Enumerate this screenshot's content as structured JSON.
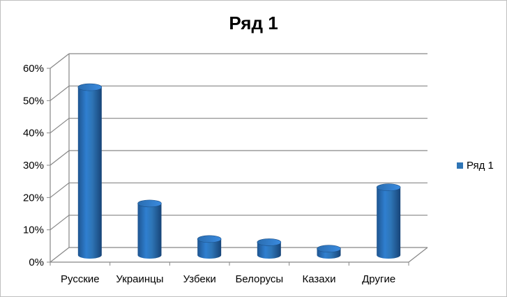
{
  "chart_data": {
    "type": "bar",
    "title": "Ряд 1",
    "categories": [
      "Русские",
      "Украинцы",
      "Узбеки",
      "Белорусы",
      "Казахи",
      "Другие"
    ],
    "series": [
      {
        "name": "Ряд 1",
        "values": [
          52,
          16,
          5,
          4,
          2,
          21
        ],
        "color": "#2e75b6"
      }
    ],
    "y_ticks": [
      "0%",
      "10%",
      "20%",
      "30%",
      "40%",
      "50%",
      "60%"
    ],
    "ylim": [
      0,
      60
    ],
    "y_unit": "%",
    "grid": true,
    "legend_position": "right",
    "style": "3d-cylinder"
  }
}
